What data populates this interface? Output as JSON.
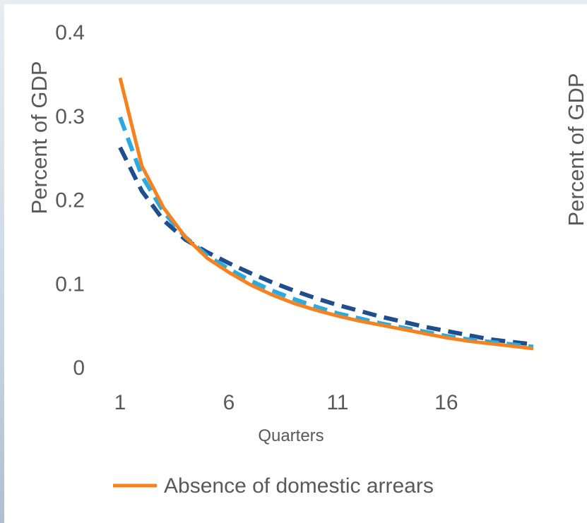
{
  "chart_data": {
    "type": "line",
    "xlabel": "Quarters",
    "ylabel": "Percent of GDP",
    "right_ylabel": "Percent of GDP",
    "xlim": [
      1,
      20
    ],
    "ylim": [
      0,
      0.4
    ],
    "x_ticks": [
      1,
      6,
      11,
      16
    ],
    "y_ticks": [
      0,
      0.1,
      0.2,
      0.3,
      0.4
    ],
    "y_tick_labels": [
      "0",
      "0.1",
      "0.2",
      "0.3",
      "0.4"
    ],
    "grid": false,
    "legend_position": "bottom",
    "x": [
      1,
      2,
      3,
      4,
      5,
      6,
      7,
      8,
      9,
      10,
      11,
      12,
      13,
      14,
      15,
      16,
      17,
      18,
      19,
      20
    ],
    "series": [
      {
        "name": "Absence of domestic arrears",
        "color": "#f5821f",
        "style": "solid",
        "values": [
          0.345,
          0.24,
          0.19,
          0.155,
          0.13,
          0.113,
          0.098,
          0.086,
          0.076,
          0.068,
          0.061,
          0.055,
          0.05,
          0.045,
          0.04,
          0.035,
          0.031,
          0.028,
          0.025,
          0.022
        ]
      },
      {
        "color": "#29abe2",
        "style": "dashed",
        "values": [
          0.298,
          0.228,
          0.185,
          0.155,
          0.133,
          0.117,
          0.103,
          0.091,
          0.081,
          0.072,
          0.064,
          0.058,
          0.052,
          0.047,
          0.042,
          0.037,
          0.033,
          0.03,
          0.027,
          0.024
        ]
      },
      {
        "color": "#1f4e8c",
        "style": "dashed",
        "values": [
          0.262,
          0.21,
          0.175,
          0.152,
          0.137,
          0.124,
          0.112,
          0.101,
          0.091,
          0.082,
          0.074,
          0.067,
          0.06,
          0.054,
          0.048,
          0.043,
          0.038,
          0.033,
          0.03,
          0.027
        ]
      }
    ]
  }
}
